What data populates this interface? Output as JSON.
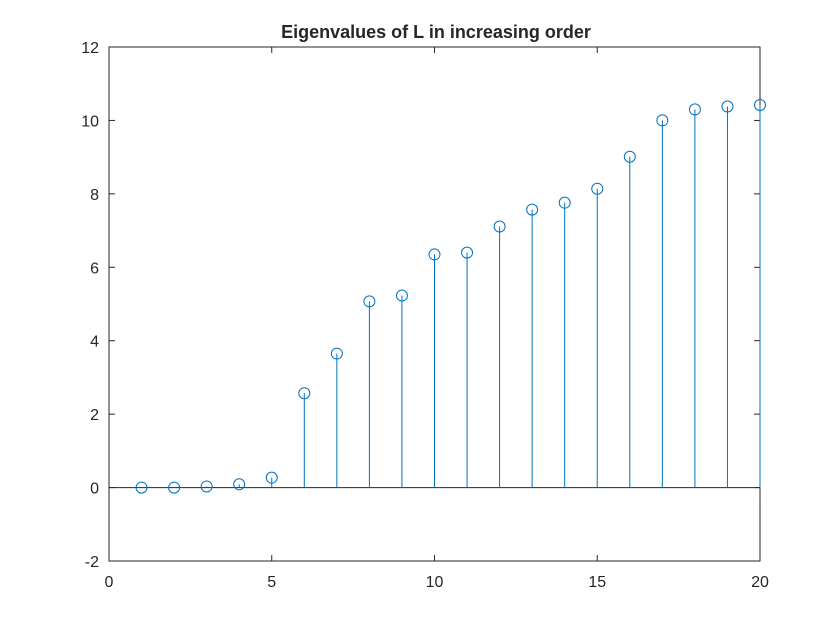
{
  "chart_data": {
    "type": "stem",
    "title": "Eigenvalues of L in increasing order",
    "xlabel": "",
    "ylabel": "",
    "xlim": [
      0,
      20
    ],
    "ylim": [
      -2,
      12
    ],
    "xticks": [
      0,
      5,
      10,
      15,
      20
    ],
    "yticks": [
      -2,
      0,
      2,
      4,
      6,
      8,
      10,
      12
    ],
    "grid": false,
    "legend": "none",
    "baseline": 0,
    "color": "#0072bd",
    "axis_color": "#262626",
    "marker": "circle-open",
    "x": [
      1,
      2,
      3,
      4,
      5,
      6,
      7,
      8,
      9,
      10,
      11,
      12,
      13,
      14,
      15,
      16,
      17,
      18,
      19,
      20
    ],
    "y": [
      0.0,
      0.0,
      0.03,
      0.09,
      0.27,
      2.57,
      3.65,
      5.07,
      5.23,
      6.35,
      6.4,
      7.11,
      7.57,
      7.76,
      8.14,
      9.01,
      10.0,
      10.3,
      10.38,
      10.42
    ]
  }
}
